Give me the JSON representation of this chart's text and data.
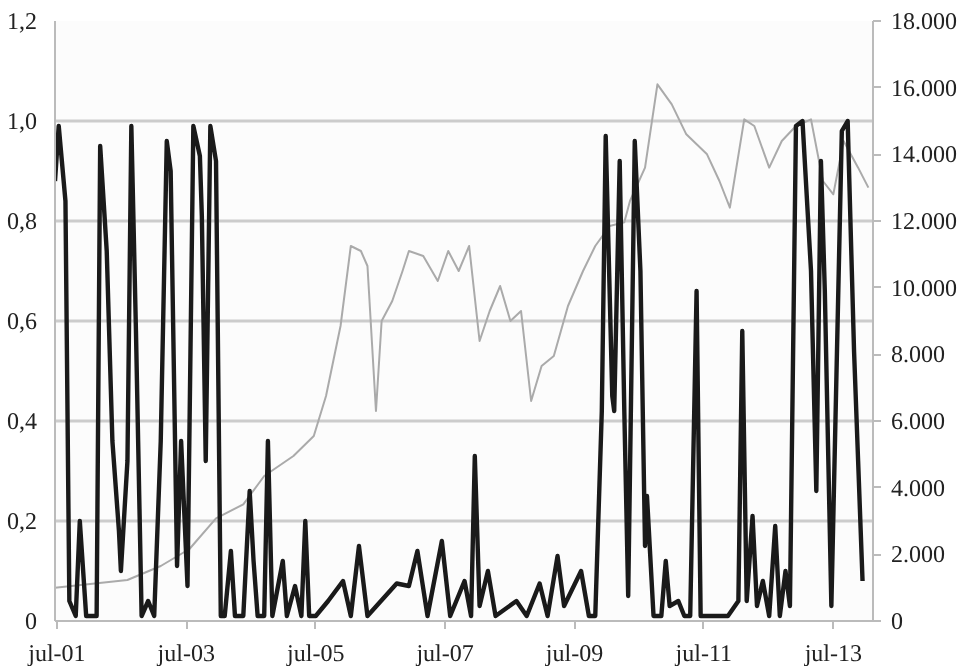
{
  "chart_data": {
    "type": "line",
    "grid": "y",
    "xlim": [
      "2001-06-20",
      "2014-02-10"
    ],
    "xticks": [
      {
        "value": "2001-07",
        "label": "jul-01"
      },
      {
        "value": "2003-07",
        "label": "jul-03"
      },
      {
        "value": "2005-07",
        "label": "jul-05"
      },
      {
        "value": "2007-07",
        "label": "jul-07"
      },
      {
        "value": "2009-07",
        "label": "jul-09"
      },
      {
        "value": "2011-07",
        "label": "jul-11"
      },
      {
        "value": "2013-07",
        "label": "jul-13"
      }
    ],
    "ylim": [
      0,
      1.2
    ],
    "yticks": [
      {
        "value": 0,
        "label": "0"
      },
      {
        "value": 0.2,
        "label": "0,2"
      },
      {
        "value": 0.4,
        "label": "0,4"
      },
      {
        "value": 0.6,
        "label": "0,6"
      },
      {
        "value": 0.8,
        "label": "0,8"
      },
      {
        "value": 1.0,
        "label": "1,0"
      },
      {
        "value": 1.2,
        "label": "1,2"
      }
    ],
    "y2lim": [
      0,
      18000
    ],
    "y2ticks": [
      {
        "value": 0,
        "label": "0"
      },
      {
        "value": 2000,
        "label": "2.000"
      },
      {
        "value": 4000,
        "label": "4.000"
      },
      {
        "value": 6000,
        "label": "6.000"
      },
      {
        "value": 8000,
        "label": "8.000"
      },
      {
        "value": 10000,
        "label": "10.000"
      },
      {
        "value": 12000,
        "label": "12.000"
      },
      {
        "value": 14000,
        "label": "14.000"
      },
      {
        "value": 16000,
        "label": "16.000"
      },
      {
        "value": 18000,
        "label": "18.000"
      }
    ],
    "series": [
      {
        "color": "#aaaaaa",
        "axis": "y2",
        "x": [
          "2001-06-20",
          "2002-08-03",
          "2003-02-07",
          "2003-07-19",
          "2003-12-16",
          "2004-05-18",
          "2004-09-13",
          "2005-02-25",
          "2005-06-20",
          "2005-08-28",
          "2005-11-18",
          "2006-01-15",
          "2006-03-13",
          "2006-04-19",
          "2006-06-06",
          "2006-07-08",
          "2006-09-06",
          "2006-11-03",
          "2006-12-09",
          "2007-02-28",
          "2007-05-21",
          "2007-07-19",
          "2007-09-16",
          "2007-11-14",
          "2008-01-12",
          "2008-03-09",
          "2008-05-07",
          "2008-07-04",
          "2008-09-02",
          "2008-10-29",
          "2008-12-27",
          "2009-03-06",
          "2009-05-25",
          "2009-08-18",
          "2009-10-26",
          "2010-01-15",
          "2010-04-08",
          "2010-05-10",
          "2010-08-03",
          "2010-10-12",
          "2011-01-01",
          "2011-03-24",
          "2011-07-19",
          "2011-09-27",
          "2011-11-25",
          "2012-02-14",
          "2012-04-11",
          "2012-07-04",
          "2012-09-13",
          "2012-12-02",
          "2013-02-25",
          "2013-05-03",
          "2013-07-01",
          "2013-08-28",
          "2013-11-18",
          "2014-01-15"
        ],
        "values": [
          1000,
          1230,
          1650,
          2160,
          3080,
          3500,
          4350,
          4950,
          5550,
          6750,
          8850,
          11250,
          11100,
          10650,
          6300,
          9000,
          9600,
          10500,
          11100,
          10950,
          10200,
          11100,
          10500,
          11250,
          8400,
          9300,
          10050,
          9000,
          9300,
          6600,
          7650,
          7950,
          9450,
          10500,
          11250,
          11850,
          11960,
          12600,
          13600,
          16100,
          15500,
          14600,
          14000,
          13200,
          12400,
          15050,
          14850,
          13600,
          14400,
          14850,
          15050,
          13200,
          12800,
          14400,
          13600,
          13000
        ]
      },
      {
        "color": "#1a1a1a",
        "x": [
          "2001-06-20",
          "2001-07-11",
          "2001-08-18",
          "2001-09-09",
          "2001-10-15",
          "2001-11-07",
          "2001-12-13",
          "2002-02-10",
          "2002-03-02",
          "2002-04-08",
          "2002-05-10",
          "2002-06-16",
          "2002-06-27",
          "2002-08-03",
          "2002-08-25",
          "2002-09-20",
          "2002-10-22",
          "2002-11-28",
          "2003-01-01",
          "2003-02-07",
          "2003-03-13",
          "2003-04-04",
          "2003-05-10",
          "2003-06-02",
          "2003-07-08",
          "2003-08-10",
          "2003-09-16",
          "2003-09-27",
          "2003-10-19",
          "2003-11-14",
          "2003-12-16",
          "2004-01-12",
          "2004-02-03",
          "2004-03-09",
          "2004-04-01",
          "2004-05-18",
          "2004-06-23",
          "2004-07-15",
          "2004-08-07",
          "2004-09-13",
          "2004-10-04",
          "2004-10-29",
          "2004-12-27",
          "2005-01-19",
          "2005-03-06",
          "2005-04-11",
          "2005-05-03",
          "2005-05-25",
          "2005-07-01",
          "2005-09-09",
          "2005-12-02",
          "2006-01-15",
          "2006-03-02",
          "2006-04-19",
          "2006-10-01",
          "2006-12-09",
          "2007-01-26",
          "2007-03-24",
          "2007-06-13",
          "2007-07-30",
          "2007-10-19",
          "2007-11-25",
          "2007-12-16",
          "2008-01-12",
          "2008-02-28",
          "2008-04-11",
          "2008-08-07",
          "2008-10-04",
          "2008-12-16",
          "2009-01-30",
          "2009-03-27",
          "2009-05-03",
          "2009-08-07",
          "2009-09-20",
          "2009-10-26",
          "2009-12-02",
          "2009-12-24",
          "2010-01-30",
          "2010-02-10",
          "2010-03-13",
          "2010-04-08",
          "2010-04-30",
          "2010-06-06",
          "2010-07-08",
          "2010-08-03",
          "2010-08-14",
          "2010-09-20",
          "2010-11-03",
          "2010-11-28",
          "2010-12-20",
          "2011-02-07",
          "2011-03-13",
          "2011-04-15",
          "2011-05-21",
          "2011-06-13",
          "2011-08-21",
          "2011-11-14",
          "2012-01-12",
          "2012-02-03",
          "2012-02-28",
          "2012-04-01",
          "2012-04-26",
          "2012-05-29",
          "2012-07-04",
          "2012-08-07",
          "2012-09-02",
          "2012-10-04",
          "2012-10-29",
          "2012-12-02",
          "2013-01-08",
          "2013-02-25",
          "2013-03-27",
          "2013-04-22",
          "2013-05-14",
          "2013-06-20",
          "2013-08-18",
          "2013-09-20",
          "2013-10-26",
          "2013-11-18",
          "2013-12-13"
        ],
        "values": [
          0.88,
          0.99,
          0.84,
          0.04,
          0.01,
          0.2,
          0.01,
          0.01,
          0.95,
          0.74,
          0.36,
          0.18,
          0.1,
          0.32,
          0.99,
          0.58,
          0.01,
          0.04,
          0.01,
          0.36,
          0.96,
          0.9,
          0.11,
          0.36,
          0.07,
          0.99,
          0.93,
          0.81,
          0.32,
          0.99,
          0.92,
          0.01,
          0.01,
          0.14,
          0.01,
          0.01,
          0.26,
          0.12,
          0.01,
          0.01,
          0.36,
          0.01,
          0.12,
          0.01,
          0.07,
          0.01,
          0.2,
          0.01,
          0.01,
          0.04,
          0.08,
          0.01,
          0.15,
          0.01,
          0.075,
          0.07,
          0.14,
          0.01,
          0.16,
          0.01,
          0.08,
          0.01,
          0.33,
          0.03,
          0.1,
          0.01,
          0.04,
          0.01,
          0.075,
          0.01,
          0.13,
          0.03,
          0.1,
          0.01,
          0.01,
          0.42,
          0.97,
          0.45,
          0.42,
          0.92,
          0.42,
          0.05,
          0.96,
          0.7,
          0.15,
          0.25,
          0.01,
          0.01,
          0.12,
          0.03,
          0.04,
          0.01,
          0.01,
          0.66,
          0.01,
          0.01,
          0.01,
          0.04,
          0.58,
          0.04,
          0.21,
          0.03,
          0.08,
          0.01,
          0.19,
          0.01,
          0.1,
          0.03,
          0.99,
          1.0,
          0.7,
          0.26,
          0.92,
          0.66,
          0.03,
          0.98,
          1.0,
          0.54,
          0.32,
          0.08
        ]
      }
    ]
  }
}
